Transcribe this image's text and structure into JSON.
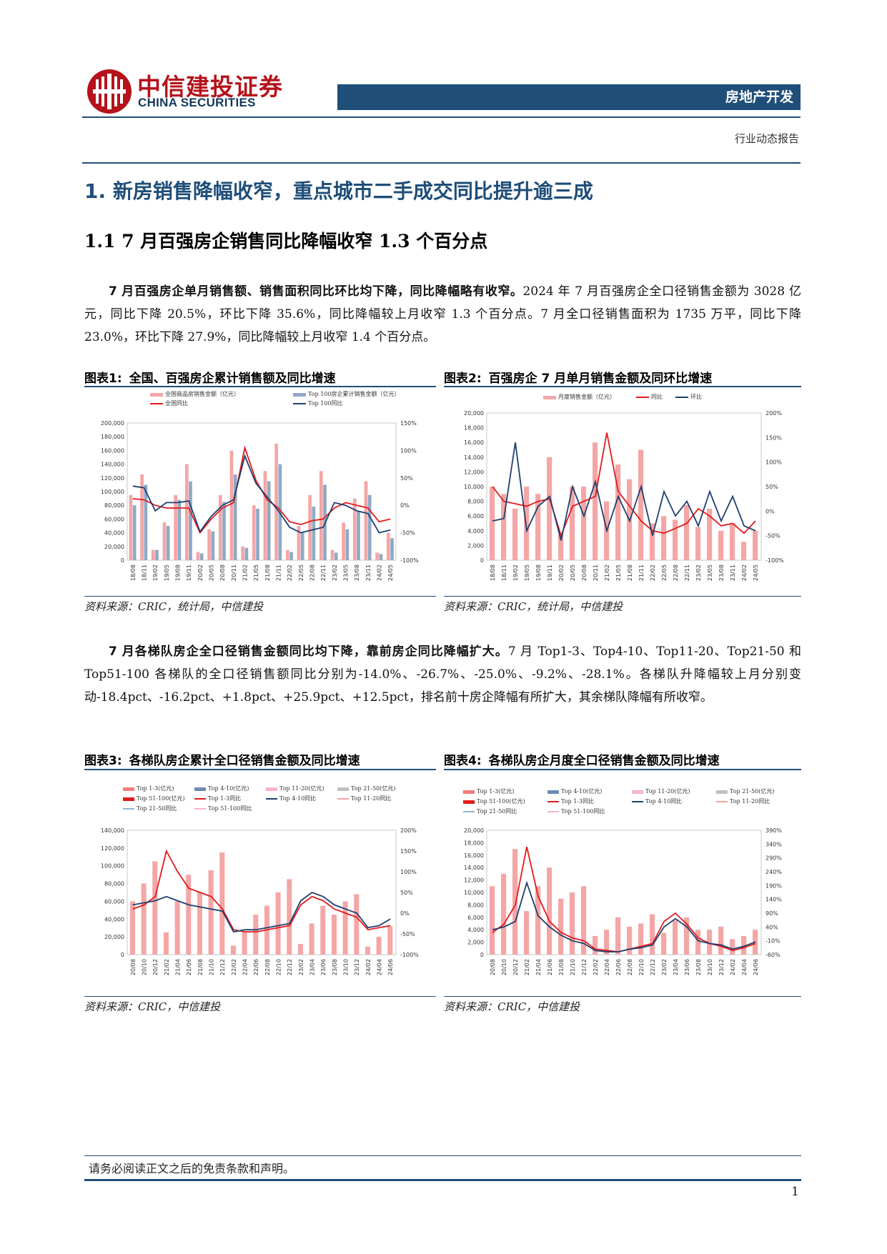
{
  "header": {
    "logo_cn": "中信建投证券",
    "logo_en": "CHINA SECURITIES",
    "sector": "房地产开发",
    "report_type": "行业动态报告"
  },
  "section": {
    "title": "1. 新房销售降幅收窄，重点城市二手成交同比提升逾三成",
    "subtitle": "1.1  7 月百强房企销售同比降幅收窄 1.3 个百分点"
  },
  "paragraph1": {
    "lead": "7 月百强房企单月销售额、销售面积同比环比均下降，同比降幅略有收窄。",
    "body": "2024 年 7 月百强房企全口径销售金额为 3028 亿元，同比下降 20.5%，环比下降 35.6%，同比降幅较上月收窄 1.3 个百分点。7 月全口径销售面积为 1735 万平，同比下降 23.0%，环比下降 27.9%，同比降幅较上月收窄 1.4 个百分点。"
  },
  "paragraph2": {
    "lead": "7 月各梯队房企全口径销售金额同比均下降，靠前房企同比降幅扩大。",
    "body": "7 月 Top1-3、Top4-10、Top11-20、Top21-50 和 Top51-100 各梯队的全口径销售额同比分别为-14.0%、-26.7%、-25.0%、-9.2%、-28.1%。各梯队升降幅较上月分别变动-18.4pct、-16.2pct、+1.8pct、+25.9pct、+12.5pct，排名前十房企降幅有所扩大，其余梯队降幅有所收窄。"
  },
  "figures": [
    {
      "label": "图表1:",
      "title": "全国、百强房企累计销售额及同比增速",
      "source": "资料来源：CRIC，统计局，中信建投",
      "legend": [
        "全国商品房销售金额（亿元）",
        "Top 100房企累计销售金额（亿元）",
        "全国同比",
        "Top 100同比"
      ]
    },
    {
      "label": "图表2:",
      "title": "百强房企 7 月单月销售金额及同环比增速",
      "source": "资料来源：CRIC，统计局，中信建投",
      "legend": [
        "月度销售金额（亿元）",
        "同比",
        "环比"
      ]
    },
    {
      "label": "图表3:",
      "title": "各梯队房企累计全口径销售金额及同比增速",
      "source": "资料来源：CRIC，中信建投",
      "legend": [
        "Top 1-3(亿元)",
        "Top 4-10(亿元)",
        "Top 11-20(亿元)",
        "Top 21-50(亿元)",
        "Top 51-100(亿元)",
        "Top 1-3同比",
        "Top 4-10同比",
        "Top 11-20同比",
        "Top 21-50同比",
        "Top 51-100同比"
      ]
    },
    {
      "label": "图表4:",
      "title": "各梯队房企月度全口径销售金额及同比增速",
      "source": "资料来源：CRIC，中信建投",
      "legend": [
        "Top 1-3(亿元)",
        "Top 4-10(亿元)",
        "Top 11-20(亿元)",
        "Top 21-50(亿元)",
        "Top 51-100(亿元)",
        "Top 1-3同比",
        "Top 4-10同比",
        "Top 11-20同比",
        "Top 21-50同比",
        "Top 51-100同比"
      ]
    }
  ],
  "footer": {
    "disclaimer": "请务必阅读正文之后的免责条款和声明。",
    "page": "1"
  },
  "colors": {
    "brand_red": "#b5121b",
    "brand_blue": "#1f4e79",
    "bar_pink": "#f4a6a6",
    "line_red": "#e31a1c",
    "line_navy": "#1f3f6e"
  },
  "chart_data": [
    {
      "type": "bar",
      "title": "全国、百强房企累计销售额及同比增速",
      "categories": [
        "18/08",
        "18/11",
        "19/02",
        "19/05",
        "19/08",
        "19/11",
        "20/02",
        "20/05",
        "20/08",
        "20/11",
        "21/02",
        "21/05",
        "21/08",
        "21/11",
        "22/02",
        "22/05",
        "22/08",
        "22/11",
        "23/02",
        "23/05",
        "23/08",
        "23/11",
        "24/02",
        "24/05"
      ],
      "ylim": [
        0,
        200000
      ],
      "y2lim": [
        -100,
        150
      ],
      "yticks": [
        "200,000",
        "180,000",
        "160,000",
        "140,000",
        "120,000",
        "100,000",
        "80,000",
        "60,000",
        "40,000",
        "20,000",
        "0"
      ],
      "y2ticks": [
        "150%",
        "100%",
        "50%",
        "0%",
        "-50%",
        "-100%"
      ],
      "series": [
        {
          "name": "全国商品房销售金额（亿元）",
          "values": [
            95000,
            125000,
            15000,
            55000,
            95000,
            140000,
            12000,
            45000,
            95000,
            160000,
            20000,
            80000,
            130000,
            170000,
            15000,
            50000,
            95000,
            130000,
            15000,
            55000,
            90000,
            115000,
            11000,
            40000
          ]
        },
        {
          "name": "Top 100房企累计销售金额（亿元）",
          "values": [
            80000,
            110000,
            15000,
            50000,
            88000,
            115000,
            10000,
            42000,
            85000,
            125000,
            18000,
            75000,
            115000,
            140000,
            12000,
            40000,
            78000,
            110000,
            11000,
            45000,
            72000,
            95000,
            9000,
            32000
          ]
        },
        {
          "name": "全国同比",
          "values": [
            12,
            10,
            0,
            -5,
            -5,
            -5,
            -50,
            -25,
            -5,
            5,
            105,
            45,
            10,
            -5,
            -30,
            -35,
            -28,
            -25,
            -5,
            5,
            0,
            -5,
            -30,
            -25
          ]
        },
        {
          "name": "Top 100同比",
          "values": [
            35,
            32,
            -10,
            5,
            5,
            8,
            -48,
            -20,
            0,
            10,
            90,
            40,
            15,
            -10,
            -40,
            -50,
            -45,
            -40,
            5,
            0,
            -10,
            -15,
            -50,
            -45
          ]
        }
      ]
    },
    {
      "type": "bar",
      "title": "百强房企 7 月单月销售金额及同环比增速",
      "categories": [
        "18/08",
        "18/11",
        "19/02",
        "19/05",
        "19/08",
        "19/11",
        "20/02",
        "20/05",
        "20/08",
        "20/11",
        "21/02",
        "21/05",
        "21/08",
        "21/11",
        "22/02",
        "22/05",
        "22/08",
        "22/11",
        "23/02",
        "23/05",
        "23/08",
        "23/11",
        "24/02",
        "24/05"
      ],
      "ylim": [
        0,
        20000
      ],
      "y2lim": [
        -100,
        200
      ],
      "yticks": [
        "20,000",
        "18,000",
        "16,000",
        "14,000",
        "12,000",
        "10,000",
        "8,000",
        "6,000",
        "4,000",
        "2,000",
        "0"
      ],
      "y2ticks": [
        "200%",
        "150%",
        "100%",
        "50%",
        "0%",
        "-50%",
        "-100%"
      ],
      "series": [
        {
          "name": "月度销售金额（亿元）",
          "values": [
            10000,
            9000,
            7000,
            10000,
            9000,
            14000,
            3500,
            10000,
            10000,
            16000,
            8000,
            13000,
            11000,
            15000,
            5000,
            6000,
            5500,
            7500,
            4500,
            7000,
            4000,
            5000,
            2500,
            4000
          ]
        },
        {
          "name": "同比",
          "values": [
            50,
            20,
            15,
            10,
            20,
            25,
            -50,
            10,
            20,
            30,
            160,
            40,
            10,
            -20,
            -40,
            -45,
            -35,
            -25,
            5,
            -10,
            -30,
            -25,
            -45,
            -20
          ]
        },
        {
          "name": "环比",
          "values": [
            -20,
            -15,
            140,
            -40,
            10,
            30,
            -60,
            50,
            -10,
            60,
            -40,
            30,
            -20,
            50,
            -50,
            40,
            -10,
            20,
            -30,
            40,
            -20,
            30,
            -30,
            -40
          ]
        }
      ]
    },
    {
      "type": "bar",
      "title": "各梯队房企累计全口径销售金额及同比增速",
      "categories": [
        "20/08",
        "20/10",
        "20/12",
        "21/02",
        "21/04",
        "21/06",
        "21/08",
        "21/10",
        "21/12",
        "22/02",
        "22/04",
        "22/06",
        "22/08",
        "22/10",
        "22/12",
        "23/02",
        "23/04",
        "23/06",
        "23/08",
        "23/10",
        "23/12",
        "24/02",
        "24/04",
        "24/06"
      ],
      "ylim": [
        0,
        140000
      ],
      "y2lim": [
        -100,
        200
      ],
      "yticks": [
        "140,000",
        "120,000",
        "100,000",
        "80,000",
        "60,000",
        "40,000",
        "20,000",
        "0"
      ],
      "y2ticks": [
        "200%",
        "150%",
        "100%",
        "50%",
        "0%",
        "-50%",
        "-100%"
      ],
      "series": [
        {
          "name": "Top 1-3(亿元)",
          "values": [
            60000,
            80000,
            105000,
            25000,
            60000,
            90000,
            70000,
            95000,
            115000,
            10000,
            25000,
            45000,
            55000,
            70000,
            85000,
            12000,
            35000,
            55000,
            45000,
            60000,
            68000,
            9000,
            20000,
            32000
          ]
        },
        {
          "name": "Top 51-100同比",
          "values": [
            10,
            20,
            40,
            150,
            100,
            60,
            50,
            40,
            10,
            -40,
            -45,
            -45,
            -40,
            -35,
            -30,
            20,
            40,
            30,
            10,
            0,
            -10,
            -40,
            -35,
            -30
          ]
        },
        {
          "name": "Top 1-3同比",
          "values": [
            20,
            25,
            30,
            40,
            30,
            20,
            15,
            10,
            5,
            -45,
            -40,
            -40,
            -35,
            -30,
            -25,
            30,
            50,
            40,
            20,
            10,
            0,
            -35,
            -30,
            -14
          ]
        }
      ]
    },
    {
      "type": "bar",
      "title": "各梯队房企月度全口径销售金额及同比增速",
      "categories": [
        "20/08",
        "20/10",
        "20/12",
        "21/02",
        "21/04",
        "21/06",
        "21/08",
        "21/10",
        "21/12",
        "22/02",
        "22/04",
        "22/06",
        "22/08",
        "22/10",
        "22/12",
        "23/02",
        "23/04",
        "23/06",
        "23/08",
        "23/10",
        "23/12",
        "24/02",
        "24/04",
        "24/06"
      ],
      "ylim": [
        0,
        20000
      ],
      "y2lim": [
        -60,
        390
      ],
      "yticks": [
        "20,000",
        "18,000",
        "16,000",
        "14,000",
        "12,000",
        "10,000",
        "8,000",
        "6,000",
        "4,000",
        "2,000",
        "0"
      ],
      "y2ticks": [
        "390%",
        "340%",
        "290%",
        "240%",
        "190%",
        "140%",
        "90%",
        "40%",
        "-10%",
        "-60%"
      ],
      "series": [
        {
          "name": "Top 1-3(亿元)",
          "values": [
            11000,
            13000,
            17000,
            7000,
            11000,
            14000,
            9000,
            10000,
            11000,
            3000,
            4000,
            6000,
            4500,
            5000,
            6500,
            3500,
            5500,
            6000,
            4000,
            4000,
            4500,
            2500,
            3000,
            4000
          ]
        },
        {
          "name": "Top 51-100同比",
          "values": [
            20,
            50,
            120,
            330,
            150,
            60,
            20,
            0,
            -10,
            -40,
            -45,
            -50,
            -40,
            -30,
            -20,
            60,
            90,
            50,
            0,
            -20,
            -30,
            -45,
            -35,
            -20
          ]
        },
        {
          "name": "Top 1-3同比",
          "values": [
            30,
            40,
            60,
            200,
            80,
            40,
            10,
            -10,
            -20,
            -45,
            -50,
            -50,
            -40,
            -35,
            -25,
            40,
            70,
            40,
            -10,
            -20,
            -25,
            -40,
            -30,
            -14
          ]
        }
      ]
    }
  ]
}
